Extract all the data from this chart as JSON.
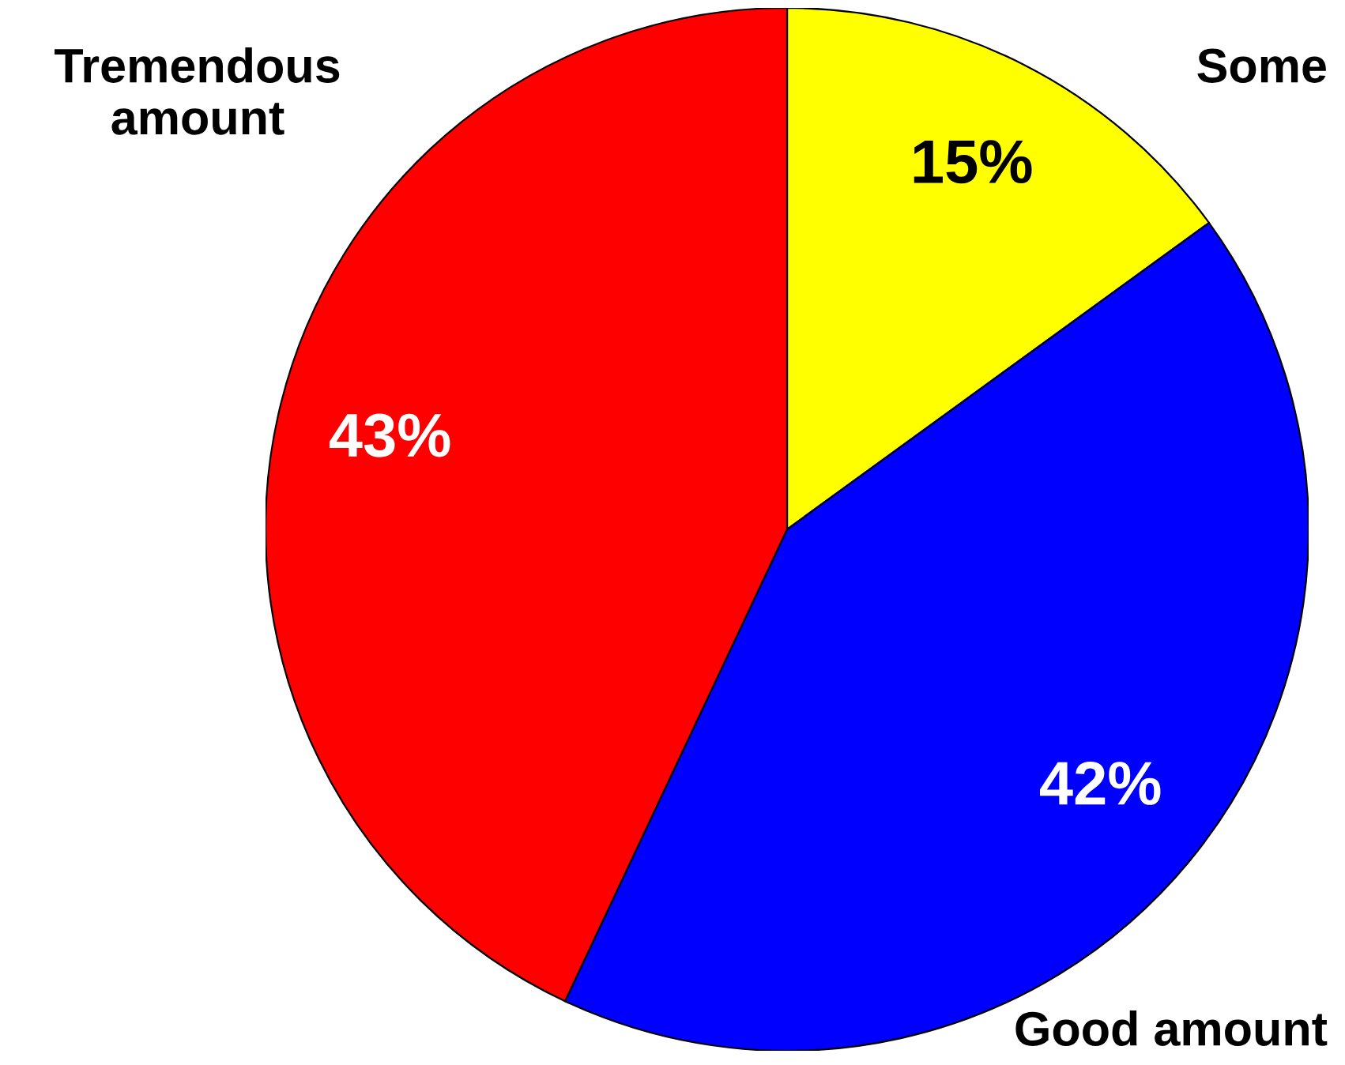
{
  "chart_data": {
    "type": "pie",
    "categories": [
      "Some",
      "Good amount",
      "Tremendous amount"
    ],
    "values": [
      15,
      42,
      43
    ],
    "colors": [
      "#ffff00",
      "#0000ff",
      "#ff0000"
    ],
    "value_labels": [
      "15%",
      "42%",
      "43%"
    ],
    "legend": false
  }
}
